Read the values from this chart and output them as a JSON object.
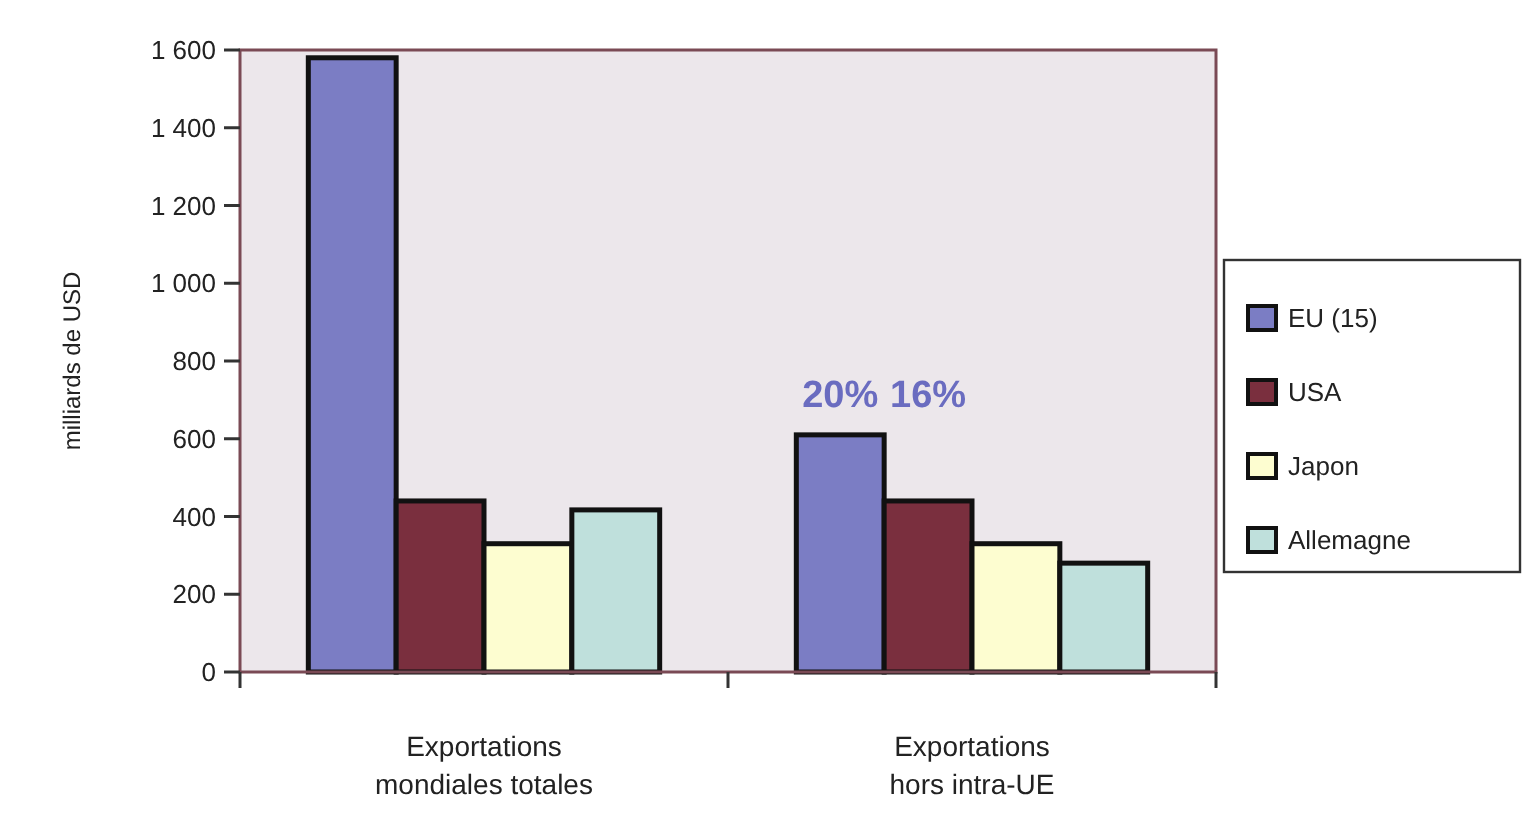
{
  "chart_data": {
    "type": "bar",
    "ylabel": "milliards de USD",
    "categories": [
      "Exportations\nmondiales totales",
      "Exportations\nhors intra-UE"
    ],
    "series": [
      {
        "name": "EU (15)",
        "color": "#7b7dc4",
        "values": [
          1580,
          610
        ]
      },
      {
        "name": "USA",
        "color": "#7a2f3e",
        "values": [
          440,
          440
        ]
      },
      {
        "name": "Japon",
        "color": "#fdfdd0",
        "values": [
          330,
          330
        ]
      },
      {
        "name": "Allemagne",
        "color": "#bfe0dc",
        "values": [
          417,
          280
        ]
      }
    ],
    "ylim": [
      0,
      1600
    ],
    "yticks": [
      0,
      {
        "value": 200,
        "label": "200"
      },
      {
        "value": 400,
        "label": "400"
      },
      {
        "value": 600,
        "label": "600"
      },
      {
        "value": 800,
        "label": "800"
      },
      {
        "value": 1000,
        "label": "1 000"
      },
      {
        "value": 1200,
        "label": "1 200"
      },
      {
        "value": 1400,
        "label": "1 400"
      },
      {
        "value": 1600,
        "label": "1 600"
      }
    ],
    "annotations": [
      "20%",
      "16%"
    ],
    "legend": "right",
    "grid": false
  }
}
